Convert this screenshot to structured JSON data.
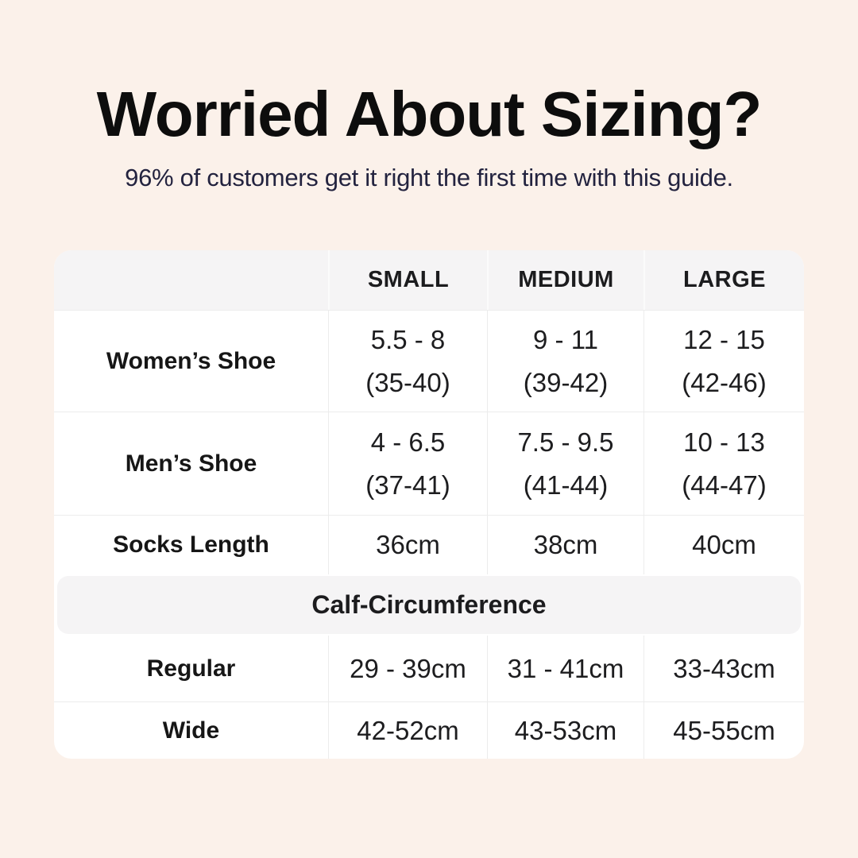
{
  "colors": {
    "background": "#fbf1ea",
    "card": "#ffffff",
    "band_gray": "#f5f4f5",
    "border": "#ececec",
    "title_text": "#0d0d0d",
    "subtitle_navy": "#23233f",
    "table_text": "#1d1d1f"
  },
  "header": {
    "title": "Worried About Sizing?",
    "subtitle": "96% of customers get it right the first time with this guide."
  },
  "table": {
    "header": {
      "col0": "",
      "col1": "SMALL",
      "col2": "MEDIUM",
      "col3": "LARGE"
    },
    "shoe_rows": [
      {
        "label": "Women’s Shoe",
        "cells": [
          {
            "line1": "5.5 - 8",
            "line2": "(35-40)"
          },
          {
            "line1": "9 - 11",
            "line2": "(39-42)"
          },
          {
            "line1": "12 - 15",
            "line2": "(42-46)"
          }
        ]
      },
      {
        "label": "Men’s Shoe",
        "cells": [
          {
            "line1": "4 - 6.5",
            "line2": "(37-41)"
          },
          {
            "line1": "7.5 - 9.5",
            "line2": "(41-44)"
          },
          {
            "line1": "10 - 13",
            "line2": "(44-47)"
          }
        ]
      }
    ],
    "socks_row": {
      "label": "Socks Length",
      "cells": [
        "36cm",
        "38cm",
        "40cm"
      ]
    },
    "calf_section": {
      "title": "Calf-Circumference"
    },
    "calf_rows": [
      {
        "label": "Regular",
        "cells": [
          "29 - 39cm",
          "31 - 41cm",
          "33-43cm"
        ]
      },
      {
        "label": "Wide",
        "cells": [
          "42-52cm",
          "43-53cm",
          "45-55cm"
        ]
      }
    ]
  },
  "chart_data": {
    "type": "table",
    "title": "Worried About Sizing?",
    "subtitle": "96% of customers get it right the first time with this guide.",
    "columns": [
      "",
      "SMALL",
      "MEDIUM",
      "LARGE"
    ],
    "rows": [
      [
        "Women’s Shoe",
        "5.5 - 8 (35-40)",
        "9 - 11 (39-42)",
        "12 - 15 (42-46)"
      ],
      [
        "Men’s Shoe",
        "4 - 6.5 (37-41)",
        "7.5 - 9.5 (41-44)",
        "10 - 13 (44-47)"
      ],
      [
        "Socks Length",
        "36cm",
        "38cm",
        "40cm"
      ],
      [
        "Calf-Circumference (section header)",
        "",
        "",
        ""
      ],
      [
        "Regular",
        "29 - 39cm",
        "31 - 41cm",
        "33-43cm"
      ],
      [
        "Wide",
        "42-52cm",
        "43-53cm",
        "45-55cm"
      ]
    ]
  }
}
